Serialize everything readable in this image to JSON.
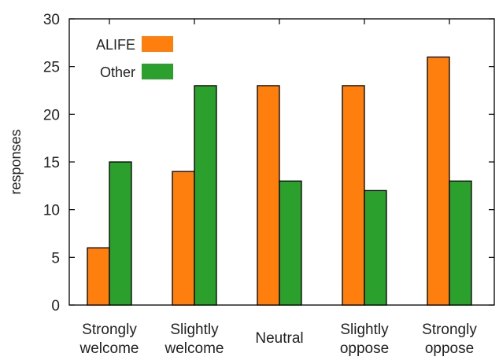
{
  "chart_data": {
    "type": "bar",
    "title": "",
    "xlabel": "",
    "ylabel": "responses",
    "ylim": [
      0,
      30
    ],
    "yticks": [
      0,
      5,
      10,
      15,
      20,
      25,
      30
    ],
    "grid": false,
    "legend_position": "top-left",
    "categories": [
      [
        "Strongly",
        "welcome"
      ],
      [
        "Slightly",
        "welcome"
      ],
      [
        "Neutral"
      ],
      [
        "Slightly",
        "oppose"
      ],
      [
        "Strongly",
        "oppose"
      ]
    ],
    "series": [
      {
        "name": "ALIFE",
        "color": "#ff7f0e",
        "values": [
          6,
          14,
          23,
          23,
          26
        ]
      },
      {
        "name": "Other",
        "color": "#2ca02c",
        "values": [
          15,
          23,
          13,
          12,
          13
        ]
      }
    ]
  }
}
